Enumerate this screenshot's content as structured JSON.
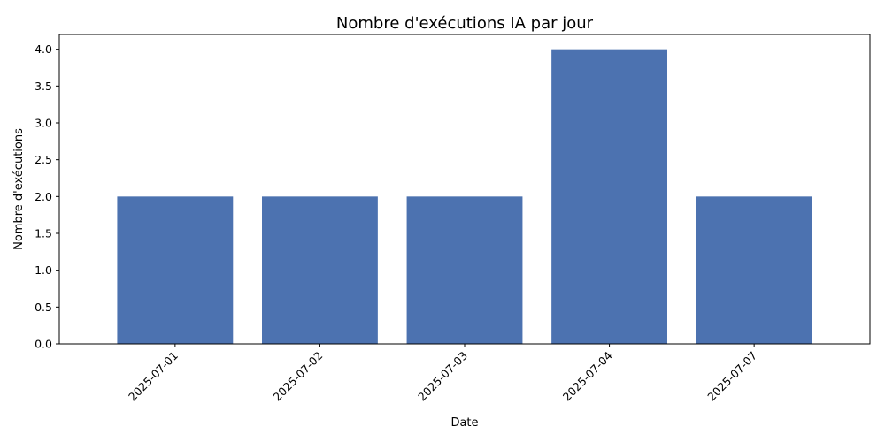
{
  "chart_data": {
    "type": "bar",
    "title": "Nombre d'exécutions IA par jour",
    "xlabel": "Date",
    "ylabel": "Nombre d'exécutions",
    "categories": [
      "2025-07-01",
      "2025-07-02",
      "2025-07-03",
      "2025-07-04",
      "2025-07-07"
    ],
    "values": [
      2,
      2,
      2,
      4,
      2
    ],
    "ylim": [
      0,
      4.2
    ],
    "yticks": [
      "0.0",
      "0.5",
      "1.0",
      "1.5",
      "2.0",
      "2.5",
      "3.0",
      "3.5",
      "4.0"
    ],
    "grid": false,
    "x_tick_rotation": "45 degrees, right-aligned",
    "colors": {
      "bar": "#4c72b0",
      "axis": "#000000",
      "background": "#ffffff"
    }
  }
}
